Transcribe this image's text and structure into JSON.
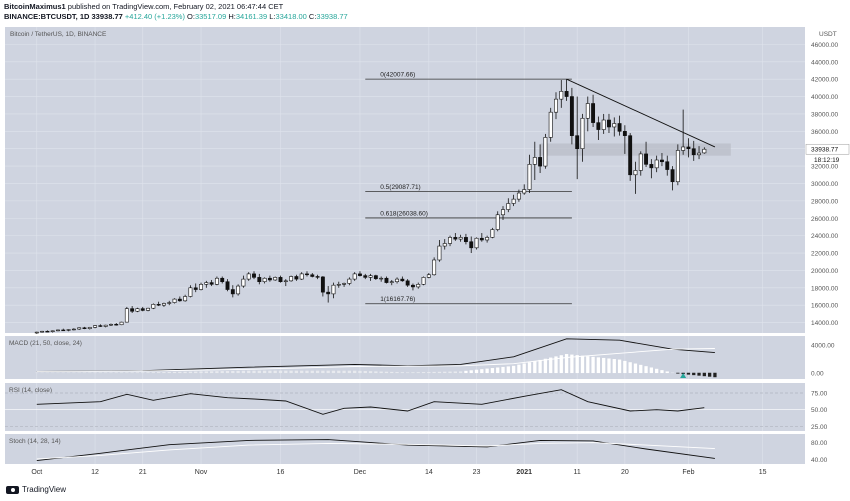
{
  "header": {
    "author": "BitcoinMaximus1",
    "published": "published on TradingView.com, February 02, 2021 06:47:44 CET",
    "symbol": "BINANCE:BTCUSDT, 1D",
    "price": "33938.77",
    "change": "+412.40 (+1.23%)",
    "o_label": "O:",
    "o_val": "33517.09",
    "h_label": "H:",
    "h_val": "34161.39",
    "l_label": "L:",
    "l_val": "33418.00",
    "c_label": "C:",
    "c_val": "33938.77"
  },
  "footer": {
    "brand": "TradingView"
  },
  "chart_data": {
    "type": "candlestick",
    "title": "Bitcoin / TetherUS, 1D, BINANCE",
    "currency": "USDT",
    "y_ticks": [
      14000,
      16000,
      18000,
      20000,
      22000,
      24000,
      26000,
      28000,
      30000,
      32000,
      34000,
      36000,
      38000,
      40000,
      42000,
      44000,
      46000
    ],
    "ylim": [
      12800,
      48000
    ],
    "last_price": "33938.77",
    "countdown": "18:12:19",
    "x_ticks": [
      {
        "label": "Oct",
        "i": 0
      },
      {
        "label": "12",
        "i": 11
      },
      {
        "label": "21",
        "i": 20
      },
      {
        "label": "Nov",
        "i": 31
      },
      {
        "label": "16",
        "i": 46
      },
      {
        "label": "Dec",
        "i": 61
      },
      {
        "label": "14",
        "i": 74
      },
      {
        "label": "23",
        "i": 83
      },
      {
        "label": "2021",
        "i": 92
      },
      {
        "label": "11",
        "i": 102
      },
      {
        "label": "20",
        "i": 111
      },
      {
        "label": "Feb",
        "i": 123
      },
      {
        "label": "15",
        "i": 137
      }
    ],
    "x_axis_i_range": [
      -6,
      145
    ],
    "candles": [
      [
        0,
        12800,
        12950,
        12700,
        12900
      ],
      [
        1,
        12900,
        13050,
        12850,
        13000
      ],
      [
        2,
        13000,
        13100,
        12900,
        12950
      ],
      [
        3,
        12950,
        13100,
        12850,
        13050
      ],
      [
        4,
        13050,
        13200,
        13000,
        13150
      ],
      [
        5,
        13150,
        13300,
        13050,
        13100
      ],
      [
        6,
        13100,
        13250,
        13000,
        13200
      ],
      [
        7,
        13200,
        13350,
        13100,
        13250
      ],
      [
        8,
        13250,
        13450,
        13150,
        13400
      ],
      [
        9,
        13400,
        13500,
        13250,
        13300
      ],
      [
        10,
        13300,
        13500,
        13200,
        13450
      ],
      [
        11,
        13450,
        13700,
        13350,
        13650
      ],
      [
        12,
        13650,
        13800,
        13500,
        13550
      ],
      [
        13,
        13550,
        13750,
        13450,
        13700
      ],
      [
        14,
        13700,
        13900,
        13600,
        13800
      ],
      [
        15,
        13800,
        13950,
        13650,
        13750
      ],
      [
        16,
        13750,
        14100,
        13700,
        14050
      ],
      [
        17,
        14050,
        15800,
        14000,
        15600
      ],
      [
        18,
        15600,
        15900,
        15100,
        15300
      ],
      [
        19,
        15300,
        15700,
        15200,
        15600
      ],
      [
        20,
        15600,
        15800,
        15300,
        15400
      ],
      [
        21,
        15400,
        15700,
        15300,
        15650
      ],
      [
        22,
        15650,
        16200,
        15550,
        16100
      ],
      [
        23,
        16100,
        16400,
        15900,
        16000
      ],
      [
        24,
        16000,
        16300,
        15800,
        16200
      ],
      [
        25,
        16200,
        16500,
        16000,
        16300
      ],
      [
        26,
        16300,
        16800,
        16200,
        16700
      ],
      [
        27,
        16700,
        17000,
        16400,
        16500
      ],
      [
        28,
        16500,
        17200,
        16400,
        17000
      ],
      [
        29,
        17000,
        18300,
        16900,
        18000
      ],
      [
        30,
        18000,
        18500,
        17500,
        17800
      ],
      [
        31,
        17800,
        18600,
        17700,
        18400
      ],
      [
        32,
        18400,
        18800,
        18000,
        18600
      ],
      [
        33,
        18600,
        18900,
        18200,
        18400
      ],
      [
        34,
        18400,
        19300,
        18300,
        19100
      ],
      [
        35,
        19100,
        19300,
        18500,
        18700
      ],
      [
        36,
        18700,
        19000,
        17600,
        17800
      ],
      [
        37,
        17800,
        18300,
        16900,
        17300
      ],
      [
        38,
        17300,
        18400,
        17100,
        18200
      ],
      [
        39,
        18200,
        19400,
        18000,
        19000
      ],
      [
        40,
        19000,
        19800,
        18800,
        19600
      ],
      [
        41,
        19600,
        19900,
        19000,
        19200
      ],
      [
        42,
        19200,
        19600,
        18400,
        18700
      ],
      [
        43,
        18700,
        19200,
        18500,
        19100
      ],
      [
        44,
        19100,
        19400,
        18700,
        18900
      ],
      [
        45,
        18900,
        19300,
        18800,
        19200
      ],
      [
        46,
        19200,
        19400,
        18600,
        18700
      ],
      [
        47,
        18700,
        19000,
        18200,
        18800
      ],
      [
        48,
        18800,
        19400,
        18700,
        19300
      ],
      [
        49,
        19300,
        19500,
        18800,
        19000
      ],
      [
        50,
        19000,
        19800,
        18900,
        19600
      ],
      [
        51,
        19600,
        19900,
        19300,
        19500
      ],
      [
        52,
        19500,
        19700,
        19200,
        19300
      ],
      [
        53,
        19300,
        19500,
        19000,
        19250
      ],
      [
        54,
        19250,
        19350,
        17000,
        17500
      ],
      [
        55,
        17500,
        18200,
        16300,
        17300
      ],
      [
        56,
        17300,
        18600,
        16800,
        18300
      ],
      [
        57,
        18300,
        18700,
        18000,
        18400
      ],
      [
        58,
        18400,
        18600,
        18100,
        18500
      ],
      [
        59,
        18500,
        19200,
        18300,
        19000
      ],
      [
        60,
        19000,
        19800,
        18800,
        19600
      ],
      [
        61,
        19600,
        19900,
        19300,
        19400
      ],
      [
        62,
        19400,
        19600,
        19000,
        19200
      ],
      [
        63,
        19200,
        19600,
        18800,
        19400
      ],
      [
        64,
        19400,
        19500,
        18900,
        19050
      ],
      [
        65,
        19050,
        19300,
        18700,
        19100
      ],
      [
        66,
        19100,
        19300,
        18500,
        18600
      ],
      [
        67,
        18600,
        18900,
        18300,
        18700
      ],
      [
        68,
        18700,
        19200,
        18500,
        19000
      ],
      [
        69,
        19000,
        19300,
        18700,
        18800
      ],
      [
        70,
        18800,
        19000,
        18100,
        18300
      ],
      [
        71,
        18300,
        18500,
        17700,
        18100
      ],
      [
        72,
        18100,
        18600,
        17900,
        18400
      ],
      [
        73,
        18400,
        19300,
        18300,
        19200
      ],
      [
        74,
        19200,
        19700,
        19100,
        19500
      ],
      [
        75,
        19500,
        21500,
        19400,
        21200
      ],
      [
        76,
        21200,
        23500,
        21000,
        22800
      ],
      [
        77,
        22800,
        23600,
        22400,
        23100
      ],
      [
        78,
        23100,
        24000,
        22800,
        23800
      ],
      [
        79,
        23800,
        24300,
        23400,
        23600
      ],
      [
        80,
        23600,
        24100,
        23300,
        23800
      ],
      [
        81,
        23800,
        24200,
        23000,
        23300
      ],
      [
        82,
        23300,
        23900,
        22000,
        22600
      ],
      [
        83,
        22600,
        23800,
        22400,
        23700
      ],
      [
        84,
        23700,
        24300,
        23300,
        23500
      ],
      [
        85,
        23500,
        24000,
        23200,
        23800
      ],
      [
        86,
        23800,
        24900,
        23700,
        24700
      ],
      [
        87,
        24700,
        26800,
        24500,
        26400
      ],
      [
        88,
        26400,
        27400,
        25800,
        27000
      ],
      [
        89,
        27000,
        28300,
        26700,
        27700
      ],
      [
        90,
        27700,
        28700,
        27400,
        28200
      ],
      [
        91,
        28200,
        29300,
        27900,
        28900
      ],
      [
        92,
        28900,
        29900,
        28700,
        29300
      ],
      [
        93,
        29300,
        33300,
        28900,
        32200
      ],
      [
        94,
        32200,
        34800,
        30400,
        33000
      ],
      [
        95,
        33000,
        34500,
        31200,
        32000
      ],
      [
        96,
        32000,
        35700,
        31700,
        35300
      ],
      [
        97,
        35300,
        38700,
        34800,
        38200
      ],
      [
        98,
        38200,
        40500,
        37400,
        39700
      ],
      [
        99,
        39700,
        41900,
        38700,
        40600
      ],
      [
        100,
        40600,
        42000,
        39500,
        40000
      ],
      [
        101,
        40000,
        41000,
        34500,
        35500
      ],
      [
        102,
        35500,
        40000,
        30500,
        34000
      ],
      [
        103,
        34000,
        38000,
        32500,
        37500
      ],
      [
        104,
        37500,
        40000,
        36000,
        39200
      ],
      [
        105,
        39200,
        40200,
        36500,
        37000
      ],
      [
        106,
        37000,
        37700,
        35000,
        36200
      ],
      [
        107,
        36200,
        38000,
        35700,
        37300
      ],
      [
        108,
        37300,
        38000,
        35800,
        36500
      ],
      [
        109,
        36500,
        37600,
        35400,
        36900
      ],
      [
        110,
        36900,
        37800,
        35500,
        36000
      ],
      [
        111,
        36000,
        36700,
        33400,
        35500
      ],
      [
        112,
        35500,
        35800,
        30300,
        31000
      ],
      [
        113,
        31000,
        32500,
        28800,
        31500
      ],
      [
        114,
        31500,
        33700,
        30900,
        33400
      ],
      [
        115,
        33400,
        34800,
        31900,
        32200
      ],
      [
        116,
        32200,
        32800,
        30600,
        31800
      ],
      [
        117,
        31800,
        33200,
        31300,
        32700
      ],
      [
        118,
        32700,
        33500,
        32000,
        32500
      ],
      [
        119,
        32500,
        33200,
        30900,
        31600
      ],
      [
        120,
        31600,
        32000,
        29200,
        30200
      ],
      [
        121,
        30200,
        34500,
        29800,
        33800
      ],
      [
        122,
        33800,
        38500,
        33300,
        34200
      ],
      [
        123,
        34200,
        35200,
        33000,
        34000
      ],
      [
        124,
        34000,
        34900,
        32600,
        33300
      ],
      [
        125,
        33300,
        34300,
        32800,
        33500
      ],
      [
        126,
        33517.09,
        34161.39,
        33418,
        33938.77
      ]
    ],
    "fibonacci": [
      {
        "label": "0(42007.66)",
        "value": 42007.66
      },
      {
        "label": "0.5(29087.71)",
        "value": 29087.71
      },
      {
        "label": "0.618(26038.60)",
        "value": 26038.6
      },
      {
        "label": "1(16167.76)",
        "value": 16167.76
      }
    ],
    "trendline": {
      "from": {
        "i": 100,
        "v": 42000
      },
      "to": {
        "i": 128,
        "v": 34200
      }
    },
    "resistance_zone": [
      33200,
      34600
    ],
    "macd": {
      "title": "MACD (21, 50, close, 24)",
      "y_ticks": [
        0,
        4000
      ],
      "ylim": [
        -900,
        5300
      ],
      "anchors_i": [
        0,
        20,
        40,
        60,
        70,
        80,
        90,
        100,
        110,
        120,
        128
      ],
      "macd": [
        200,
        300,
        800,
        1200,
        1000,
        1200,
        2300,
        4900,
        4700,
        3400,
        2900
      ],
      "signal": [
        200,
        250,
        500,
        900,
        950,
        1000,
        1300,
        2200,
        2800,
        3400,
        3500
      ]
    },
    "rsi": {
      "title": "RSI (14, close)",
      "y_ticks": [
        75,
        50,
        25
      ],
      "ylim": [
        18,
        90
      ],
      "anchors_i": [
        0,
        12,
        17,
        22,
        29,
        36,
        41,
        47,
        54,
        58,
        63,
        70,
        75,
        84,
        92,
        99,
        104,
        112,
        117,
        121,
        126
      ],
      "values": [
        58,
        62,
        73,
        64,
        74,
        68,
        66,
        63,
        43,
        52,
        54,
        48,
        62,
        58,
        70,
        80,
        62,
        48,
        50,
        48,
        53
      ]
    },
    "stoch": {
      "title": "Stoch (14, 28, 14)",
      "y_ticks": [
        80,
        40
      ],
      "ylim": [
        30,
        100
      ],
      "anchors_i": [
        0,
        12,
        25,
        40,
        55,
        70,
        85,
        95,
        105,
        115,
        128
      ],
      "k": [
        38,
        55,
        75,
        85,
        87,
        74,
        70,
        85,
        84,
        65,
        43
      ],
      "d": [
        42,
        50,
        63,
        74,
        78,
        76,
        72,
        78,
        80,
        74,
        66
      ]
    }
  }
}
